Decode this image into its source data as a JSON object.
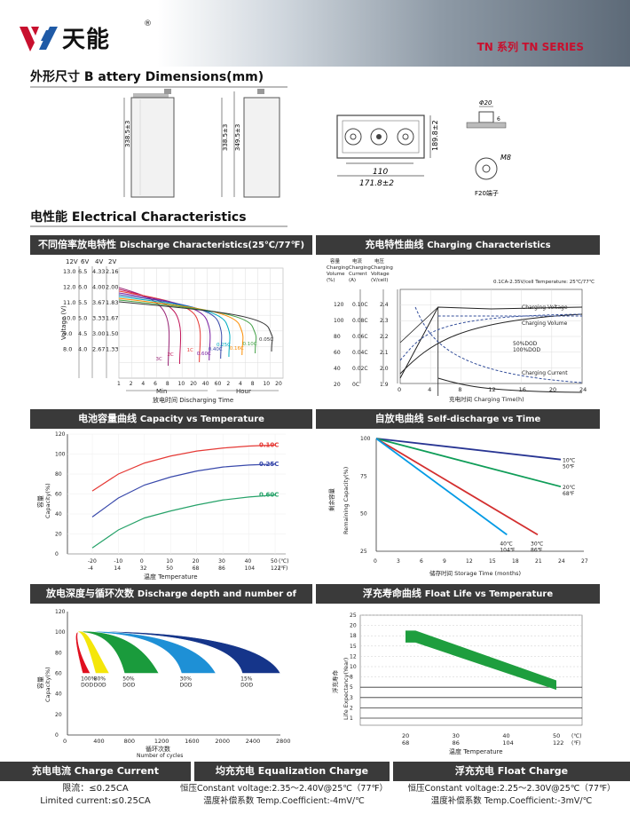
{
  "brand": {
    "name": "天能",
    "reg": "®",
    "series": "TN 系列 TN SERIES",
    "logo_colors": [
      "#c8102e",
      "#1f5aa6"
    ]
  },
  "dims": {
    "title_cn": "外形尺寸",
    "title_en": "B attery Dimensions(mm)",
    "side_a": "338.5±3",
    "side_b": "338.5±3",
    "side_c": "349.5±3",
    "top_height": "189.8±2",
    "top_w_inner": "110",
    "top_w_outer": "171.8±2",
    "terminal_d": "Φ20",
    "terminal_h": "6",
    "terminal_bolt": "M8",
    "terminal_caption": "F20端子"
  },
  "elec": {
    "title_cn": "电性能",
    "title_en": "Electrical Characteristics"
  },
  "panels": {
    "discharge": {
      "cn": "不同倍率放电特性",
      "en": "Discharge Characteristics(25℃/77℉)"
    },
    "charging": {
      "cn": "充电特性曲线",
      "en": "Charging Characteristics"
    },
    "capacity": {
      "cn": "电池容量曲线",
      "en": "Capacity vs Temperature"
    },
    "selfdis": {
      "cn": "自放电曲线",
      "en": "Self-discharge vs Time"
    },
    "cycles": {
      "cn": "放电深度与循环次数",
      "en": "Discharge depth and number of cycles"
    },
    "float": {
      "cn": "浮充寿命曲线",
      "en": "Float Life vs Temperature"
    }
  },
  "footer": {
    "cc_title": "充电电流 Charge Current",
    "cc_l1": "限流：≤0.25CA",
    "cc_l2": "Limited current:≤0.25CA",
    "eq_title": "均充充电 Equalization Charge",
    "eq_l1": "恒压Constant voltage:2.35～2.40V@25℃（77℉）",
    "eq_l2": "温度补偿系数 Temp.Coefficient:-4mV/℃",
    "fl_title": "浮充充电 Float Charge",
    "fl_l1": "恒压Constant voltage:2.25～2.30V@25℃（77℉）",
    "fl_l2": "温度补偿系数 Temp.Coefficient:-3mV/℃"
  },
  "chart_data": [
    {
      "type": "line",
      "id": "discharge",
      "volt_headers": [
        "12V",
        "6V",
        "4V",
        "2V"
      ],
      "volt_rows": [
        [
          "13.0",
          "6.5",
          "4.33",
          "2.16"
        ],
        [
          "12.0",
          "6.0",
          "4.00",
          "2.00"
        ],
        [
          "11.0",
          "5.5",
          "3.67",
          "1.83"
        ],
        [
          "10.0",
          "5.0",
          "3.33",
          "1.67"
        ],
        [
          "9.0",
          "4.5",
          "3.00",
          "1.50"
        ],
        [
          "8.0",
          "4.0",
          "2.67",
          "1.33"
        ]
      ],
      "ylabel": "Voltage (V)",
      "xlabel": "放电时间 Discharging  Time",
      "x_ticks": [
        "1",
        "2",
        "4",
        "6",
        "8",
        "10",
        "20",
        "40",
        "60",
        "2",
        "4",
        "8",
        "10",
        "20"
      ],
      "x_groups": [
        "Min",
        "Hour"
      ],
      "series": [
        {
          "name": "3C",
          "color": "#9c2a7a",
          "end": 0.3
        },
        {
          "name": "2C",
          "color": "#c2185b",
          "end": 0.37
        },
        {
          "name": "1C",
          "color": "#e53935",
          "end": 0.49
        },
        {
          "name": "0.60C",
          "color": "#7b1fa2",
          "end": 0.55
        },
        {
          "name": "0.40C",
          "color": "#3949ab",
          "end": 0.62
        },
        {
          "name": "0.25C",
          "color": "#00acc1",
          "end": 0.67
        },
        {
          "name": "0.16C",
          "color": "#fb8c00",
          "end": 0.75
        },
        {
          "name": "0.10C",
          "color": "#43a047",
          "end": 0.83
        },
        {
          "name": "0.05C",
          "color": "#333333",
          "end": 0.93
        }
      ]
    },
    {
      "type": "line",
      "id": "charging",
      "col_headers": [
        [
          "容量",
          "Charging",
          "Volume",
          "(%)"
        ],
        [
          "电流",
          "Charging",
          "Current",
          "(A)"
        ],
        [
          "电压",
          "Charging",
          "Voltage",
          "(V/cell)"
        ]
      ],
      "left_volume": [
        "120",
        "100",
        "80",
        "60",
        "40",
        "20"
      ],
      "left_current": [
        "0.10C",
        "0.08C",
        "0.06C",
        "0.04C",
        "0.02C",
        "0C"
      ],
      "left_voltage": [
        "2.4",
        "2.3",
        "2.2",
        "2.1",
        "2.0",
        "1.9"
      ],
      "x_ticks": [
        "0",
        "4",
        "8",
        "12",
        "16",
        "20",
        "24"
      ],
      "xlabel": "充电时间 Charging Time(h)",
      "note": "0.1CA-2.35V/cell  Temperature: 25℃/77℃",
      "labels": [
        "Charging Voltage",
        "Charging Volume",
        "50%DOD",
        "100%DOD",
        "Charging Current"
      ]
    },
    {
      "type": "line",
      "id": "capacity",
      "ylim": [
        0,
        120
      ],
      "y_ticks": [
        "0",
        "20",
        "40",
        "60",
        "80",
        "100",
        "120"
      ],
      "x_ticks_c": [
        "-20",
        "-10",
        "0",
        "10",
        "20",
        "30",
        "40",
        "50"
      ],
      "x_ticks_f": [
        "-4",
        "14",
        "32",
        "50",
        "68",
        "86",
        "104",
        "122"
      ],
      "unit_c": "(℃)",
      "unit_f": "(℉)",
      "ylabel_cn": "容量",
      "ylabel": "Capacity(%)",
      "xlabel": "温度 Temperature",
      "series": [
        {
          "name": "0.10C",
          "color": "#e53935",
          "values": [
            63,
            80,
            91,
            98,
            103,
            106,
            108,
            109
          ]
        },
        {
          "name": "0.25C",
          "color": "#3949ab",
          "values": [
            37,
            56,
            69,
            77,
            83,
            87,
            89,
            90
          ]
        },
        {
          "name": "0.60C",
          "color": "#26a269",
          "values": [
            6,
            24,
            36,
            43,
            49,
            54,
            57,
            59
          ]
        }
      ]
    },
    {
      "type": "line",
      "id": "selfdis",
      "ylim": [
        25,
        100
      ],
      "y_ticks": [
        "25",
        "50",
        "75",
        "100"
      ],
      "x_ticks": [
        "0",
        "3",
        "6",
        "9",
        "12",
        "15",
        "18",
        "21",
        "24",
        "27"
      ],
      "ylabel_cn": "剩余容量",
      "ylabel": "Remaining Capacity(%)",
      "xlabel": "储存时间 Storage Time (months)",
      "series": [
        {
          "name": "10℃ 50℉",
          "color": "#283593",
          "x": [
            0,
            24
          ],
          "values": [
            100,
            86
          ]
        },
        {
          "name": "20℃ 68℉",
          "color": "#0f9d58",
          "x": [
            0,
            24
          ],
          "values": [
            100,
            68
          ]
        },
        {
          "name": "30℃ 86℉",
          "color": "#d32f2f",
          "x": [
            0,
            21
          ],
          "values": [
            100,
            36
          ]
        },
        {
          "name": "40℃ 104℉",
          "color": "#039be5",
          "x": [
            0,
            17
          ],
          "values": [
            100,
            36
          ]
        }
      ]
    },
    {
      "type": "area",
      "id": "cycles",
      "ylim": [
        0,
        120
      ],
      "y_ticks": [
        "0",
        "20",
        "40",
        "60",
        "80",
        "100",
        "120"
      ],
      "x_ticks": [
        "0",
        "400",
        "800",
        "1200",
        "1600",
        "2000",
        "2400",
        "2800"
      ],
      "ylabel_cn": "容量",
      "ylabel": "Capacity(%)",
      "xlabel_cn": "循环次数",
      "xlabel": "Number of cycles",
      "series": [
        {
          "name": "100% DOD",
          "color": "#e0101f",
          "cycles": [
            200,
            300
          ]
        },
        {
          "name": "80% DOD",
          "color": "#f4e60a",
          "cycles": [
            370,
            550
          ]
        },
        {
          "name": "50% DOD",
          "color": "#1a9b3c",
          "cycles": [
            750,
            1200
          ]
        },
        {
          "name": "30% DOD",
          "color": "#1e90d6",
          "cycles": [
            1500,
            1950
          ]
        },
        {
          "name": "15% DOD",
          "color": "#15358a",
          "cycles": [
            2300,
            2800
          ]
        }
      ]
    },
    {
      "type": "area",
      "id": "float",
      "y_ticks": [
        "1",
        "2",
        "3",
        "5",
        "8",
        "10",
        "12",
        "15",
        "18",
        "20",
        "25"
      ],
      "x_ticks_c": [
        "20",
        "30",
        "40",
        "50"
      ],
      "x_ticks_f": [
        "68",
        "86",
        "104",
        "122"
      ],
      "unit_c": "(℃)",
      "unit_f": "(℉)",
      "ylabel_cn": "浮充寿命",
      "ylabel": "Life Expectancy(Year)",
      "xlabel": "温度 Temperature",
      "band": {
        "x": [
          20,
          22,
          50
        ],
        "upper": [
          19,
          19,
          7
        ],
        "lower": [
          16,
          16,
          4.5
        ],
        "color": "#1e9e3e"
      }
    }
  ]
}
